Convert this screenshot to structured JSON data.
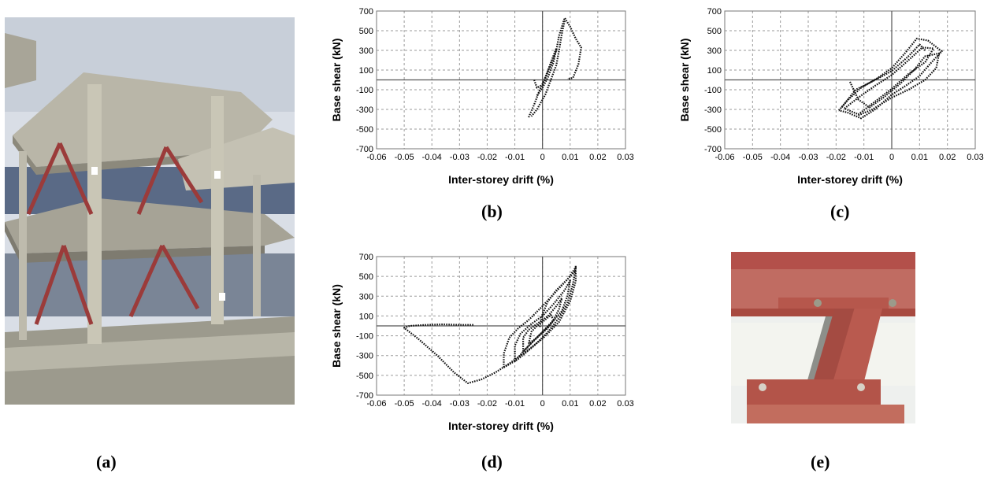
{
  "panels": {
    "a": "(a)",
    "b": "(b)",
    "c": "(c)",
    "d": "(d)",
    "e": "(e)"
  },
  "photos": {
    "a": {
      "icon": "building-frame-photo"
    },
    "e": {
      "icon": "steel-brace-connection-photo"
    }
  },
  "colors": {
    "curve": "#111111",
    "grid": "#9a9a9a",
    "axis": "#555555",
    "steel_red": "#b5483a",
    "concrete": "#c9c6b8",
    "sky": "#dfe4ea"
  },
  "chart_data": [
    {
      "id": "b",
      "type": "scatter",
      "xlabel": "Inter-storey drift (%)",
      "ylabel": "Base shear (kN)",
      "xlim": [
        -0.06,
        0.03
      ],
      "ylim": [
        -700,
        700
      ],
      "xticks": [
        "-0.06",
        "-0.05",
        "-0.04",
        "-0.03",
        "-0.02",
        "-0.01",
        "0",
        "0.01",
        "0.02",
        "0.03"
      ],
      "yticks": [
        "700",
        "500",
        "300",
        "100",
        "-100",
        "-300",
        "-500",
        "-700"
      ],
      "grid": true,
      "curves": [
        [
          [
            -0.005,
            -380
          ],
          [
            -0.003,
            -250
          ],
          [
            -0.001,
            -100
          ],
          [
            0.001,
            20
          ],
          [
            0.003,
            150
          ],
          [
            0.005,
            300
          ],
          [
            0.006,
            450
          ],
          [
            0.008,
            630
          ],
          [
            0.01,
            540
          ],
          [
            0.012,
            420
          ],
          [
            0.014,
            330
          ],
          [
            0.013,
            160
          ],
          [
            0.011,
            20
          ],
          [
            0.009,
            10
          ]
        ],
        [
          [
            0.008,
            600
          ],
          [
            0.007,
            470
          ],
          [
            0.006,
            300
          ],
          [
            0.005,
            150
          ],
          [
            0.003,
            0
          ],
          [
            0.001,
            -150
          ],
          [
            -0.002,
            -300
          ],
          [
            -0.004,
            -370
          ]
        ],
        [
          [
            -0.003,
            0
          ],
          [
            -0.002,
            -80
          ],
          [
            0.0,
            -50
          ],
          [
            0.002,
            100
          ],
          [
            0.004,
            250
          ],
          [
            0.005,
            320
          ],
          [
            0.004,
            180
          ],
          [
            0.002,
            30
          ],
          [
            0.0,
            -80
          ],
          [
            -0.002,
            -160
          ]
        ]
      ]
    },
    {
      "id": "c",
      "type": "scatter",
      "xlabel": "Inter-storey drift (%)",
      "ylabel": "Base shear (kN)",
      "xlim": [
        -0.06,
        0.03
      ],
      "ylim": [
        -700,
        700
      ],
      "xticks": [
        "-0.06",
        "-0.05",
        "-0.04",
        "-0.03",
        "-0.02",
        "-0.01",
        "0",
        "0.01",
        "0.02",
        "0.03"
      ],
      "yticks": [
        "700",
        "500",
        "300",
        "100",
        "-100",
        "-300",
        "-500",
        "-700"
      ],
      "grid": true,
      "curves": [
        [
          [
            -0.019,
            -310
          ],
          [
            -0.016,
            -210
          ],
          [
            -0.011,
            -80
          ],
          [
            -0.005,
            20
          ],
          [
            0.0,
            120
          ],
          [
            0.005,
            280
          ],
          [
            0.009,
            420
          ],
          [
            0.013,
            400
          ],
          [
            0.018,
            290
          ],
          [
            0.014,
            170
          ],
          [
            0.01,
            40
          ],
          [
            0.005,
            -60
          ],
          [
            0.0,
            -150
          ],
          [
            -0.006,
            -300
          ],
          [
            -0.011,
            -390
          ],
          [
            -0.016,
            -330
          ],
          [
            -0.019,
            -310
          ]
        ],
        [
          [
            -0.017,
            -290
          ],
          [
            -0.012,
            -180
          ],
          [
            -0.006,
            -60
          ],
          [
            0.0,
            50
          ],
          [
            0.006,
            200
          ],
          [
            0.011,
            330
          ],
          [
            0.015,
            320
          ],
          [
            0.012,
            180
          ],
          [
            0.006,
            60
          ],
          [
            0.0,
            -90
          ],
          [
            -0.006,
            -220
          ],
          [
            -0.012,
            -350
          ],
          [
            -0.017,
            -290
          ]
        ],
        [
          [
            -0.015,
            -20
          ],
          [
            -0.012,
            -200
          ],
          [
            -0.008,
            -280
          ],
          [
            -0.003,
            -180
          ],
          [
            0.003,
            -40
          ],
          [
            0.008,
            100
          ],
          [
            0.012,
            240
          ],
          [
            0.017,
            270
          ],
          [
            0.016,
            120
          ],
          [
            0.012,
            0
          ],
          [
            0.006,
            -100
          ],
          [
            0.0,
            -180
          ],
          [
            -0.007,
            -300
          ],
          [
            -0.012,
            -360
          ]
        ],
        [
          [
            -0.018,
            -280
          ],
          [
            -0.013,
            -100
          ],
          [
            -0.008,
            -30
          ],
          [
            -0.004,
            30
          ],
          [
            0.0,
            90
          ],
          [
            0.006,
            240
          ],
          [
            0.01,
            360
          ],
          [
            0.012,
            300
          ]
        ]
      ]
    },
    {
      "id": "d",
      "type": "scatter",
      "xlabel": "Inter-storey drift (%)",
      "ylabel": "Base shear (kN)",
      "xlim": [
        -0.06,
        0.03
      ],
      "ylim": [
        -700,
        700
      ],
      "xticks": [
        "-0.06",
        "-0.05",
        "-0.04",
        "-0.03",
        "-0.02",
        "-0.01",
        "0",
        "0.01",
        "0.02",
        "0.03"
      ],
      "yticks": [
        "700",
        "500",
        "300",
        "100",
        "-100",
        "-300",
        "-500",
        "-700"
      ],
      "grid": true,
      "curves": [
        [
          [
            -0.025,
            10
          ],
          [
            -0.03,
            10
          ],
          [
            -0.036,
            15
          ],
          [
            -0.042,
            10
          ],
          [
            -0.048,
            0
          ],
          [
            -0.05,
            -20
          ],
          [
            -0.045,
            -130
          ],
          [
            -0.038,
            -300
          ],
          [
            -0.032,
            -470
          ],
          [
            -0.027,
            -580
          ],
          [
            -0.022,
            -540
          ],
          [
            -0.017,
            -470
          ],
          [
            -0.012,
            -380
          ],
          [
            -0.006,
            -260
          ],
          [
            0.0,
            -130
          ],
          [
            0.006,
            40
          ],
          [
            0.01,
            250
          ],
          [
            0.012,
            450
          ],
          [
            0.012,
            610
          ]
        ],
        [
          [
            -0.014,
            -420
          ],
          [
            -0.014,
            -280
          ],
          [
            -0.012,
            -120
          ],
          [
            -0.009,
            -30
          ],
          [
            -0.005,
            60
          ],
          [
            0.0,
            200
          ],
          [
            0.004,
            320
          ],
          [
            0.009,
            470
          ],
          [
            0.012,
            590
          ],
          [
            0.011,
            420
          ],
          [
            0.009,
            230
          ],
          [
            0.006,
            80
          ],
          [
            0.002,
            -60
          ],
          [
            -0.003,
            -200
          ],
          [
            -0.009,
            -340
          ],
          [
            -0.014,
            -420
          ]
        ],
        [
          [
            -0.01,
            -360
          ],
          [
            -0.01,
            -200
          ],
          [
            -0.008,
            -80
          ],
          [
            -0.004,
            20
          ],
          [
            0.0,
            100
          ],
          [
            0.004,
            220
          ],
          [
            0.008,
            360
          ],
          [
            0.01,
            460
          ],
          [
            0.009,
            300
          ],
          [
            0.007,
            150
          ],
          [
            0.003,
            20
          ],
          [
            -0.002,
            -120
          ],
          [
            -0.007,
            -260
          ],
          [
            -0.01,
            -360
          ]
        ],
        [
          [
            -0.007,
            -260
          ],
          [
            -0.007,
            -120
          ],
          [
            -0.005,
            -40
          ],
          [
            -0.002,
            20
          ],
          [
            0.002,
            100
          ],
          [
            0.005,
            200
          ],
          [
            0.007,
            280
          ],
          [
            0.006,
            170
          ],
          [
            0.004,
            60
          ],
          [
            0.0,
            -60
          ],
          [
            -0.004,
            -170
          ],
          [
            -0.007,
            -260
          ]
        ],
        [
          [
            -0.005,
            -180
          ],
          [
            -0.004,
            -60
          ],
          [
            -0.002,
            0
          ],
          [
            0.0,
            40
          ],
          [
            0.003,
            110
          ],
          [
            0.004,
            60
          ],
          [
            0.002,
            -20
          ],
          [
            -0.002,
            -120
          ],
          [
            -0.005,
            -180
          ]
        ],
        [
          [
            -0.001,
            -10
          ],
          [
            0.0,
            120
          ],
          [
            0.002,
            250
          ],
          [
            0.005,
            360
          ],
          [
            0.009,
            470
          ],
          [
            0.012,
            560
          ]
        ]
      ]
    }
  ]
}
